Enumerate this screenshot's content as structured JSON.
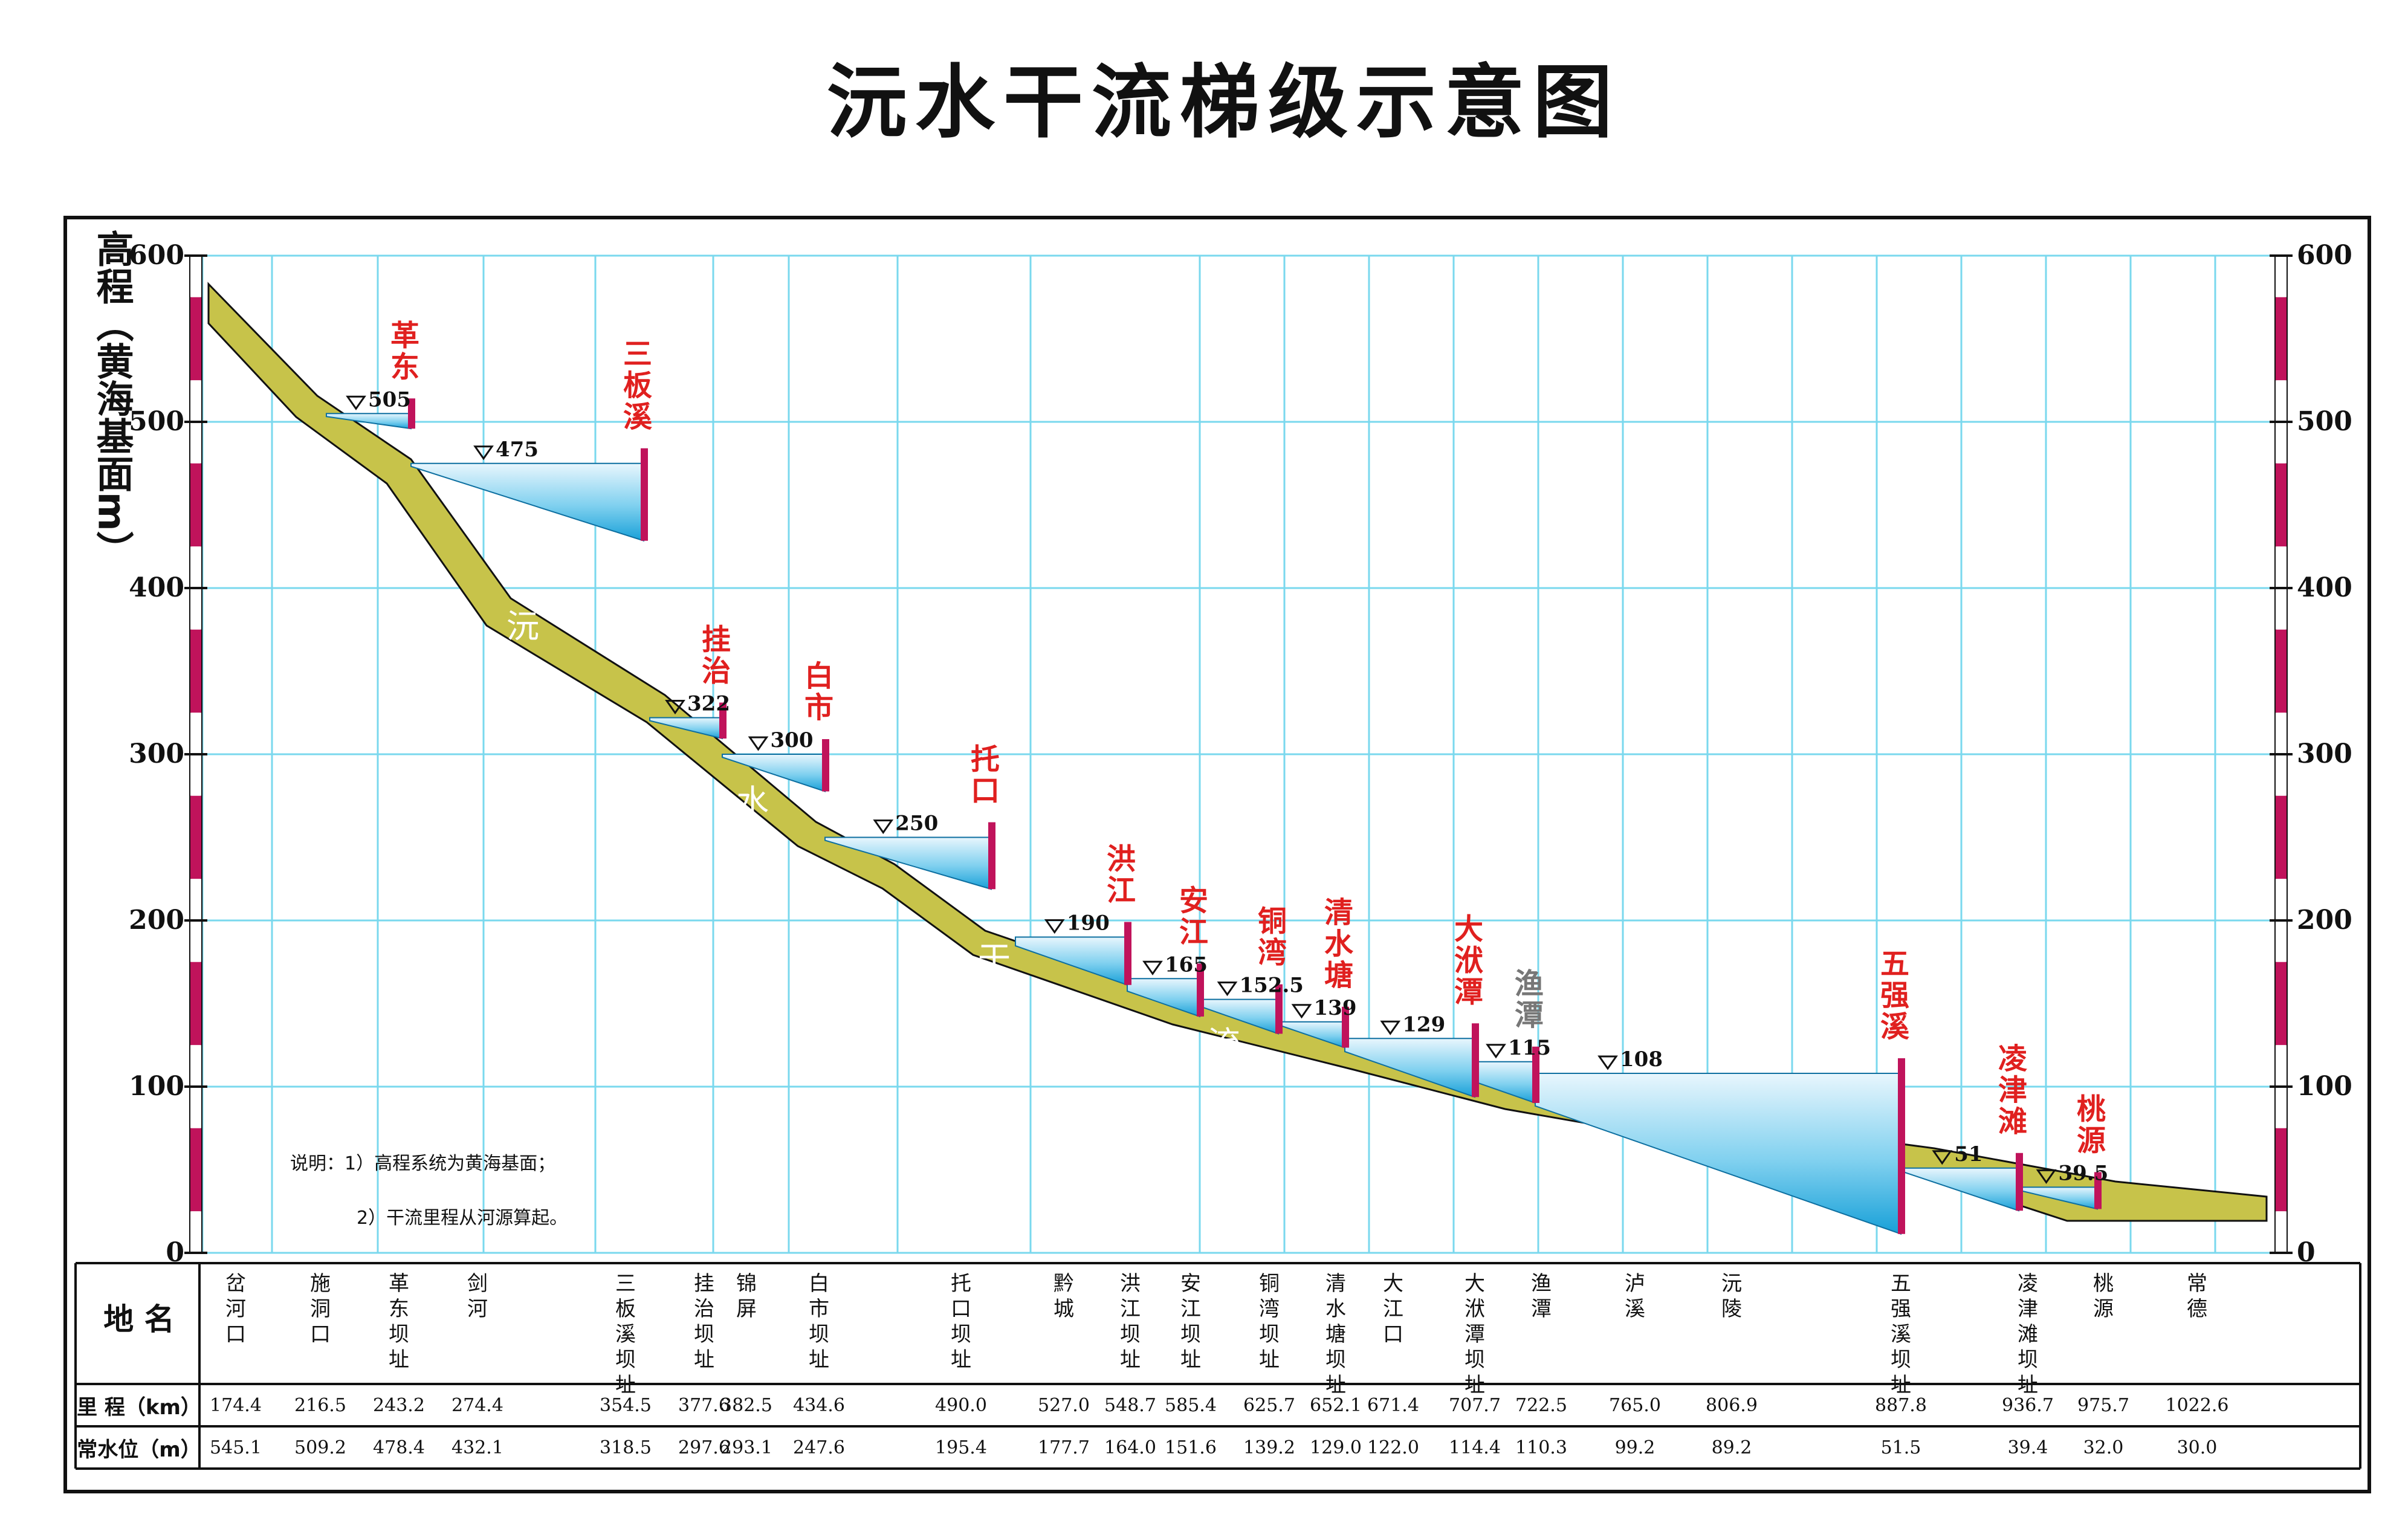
{
  "title": "沅水干流梯级示意图",
  "axis": {
    "ylabel": "高程（黄海基面m）",
    "ticks": [
      "600",
      "500",
      "400",
      "300",
      "200",
      "100",
      "0"
    ]
  },
  "notes": [
    "说明：1）高程系统为黄海基面；",
    "2）干流里程从河源算起。"
  ],
  "colors": {
    "dam_label": "#e0201f",
    "dam": "#c0135b",
    "riverbed": "#c7c34a",
    "grid": "#7ad8ee"
  },
  "river_letters": [
    "沅",
    "水",
    "干",
    "流"
  ],
  "chart_data": {
    "type": "profile",
    "title": "沅水干流梯级示意图",
    "ylabel": "高程（黄海基面m）",
    "ylim": [
      0,
      600
    ],
    "reservoirs": [
      {
        "name": "革东",
        "level": "505",
        "level_m": 505
      },
      {
        "name": "三板溪",
        "level": "475",
        "level_m": 475
      },
      {
        "name": "挂治",
        "level": "322",
        "level_m": 322
      },
      {
        "name": "白市",
        "level": "300",
        "level_m": 300
      },
      {
        "name": "托口",
        "level": "250",
        "level_m": 250
      },
      {
        "name": "洪江",
        "level": "190",
        "level_m": 190
      },
      {
        "name": "安江",
        "level": "165",
        "level_m": 165
      },
      {
        "name": "铜湾",
        "level": "152.5",
        "level_m": 152.5
      },
      {
        "name": "清水塘",
        "level": "139",
        "level_m": 139
      },
      {
        "name": "大洑潭",
        "level": "129",
        "level_m": 129
      },
      {
        "name": "渔潭",
        "level": "115",
        "level_m": 115
      },
      {
        "name": "五强溪",
        "level": "108",
        "level_m": 108
      },
      {
        "name": "凌津滩",
        "level": "51",
        "level_m": 51
      },
      {
        "name": "桃源",
        "level": "39.5",
        "level_m": 39.5
      }
    ]
  },
  "table": {
    "row_headers": [
      "地 名",
      "里 程（km）",
      "常水位（m）"
    ],
    "stations": [
      {
        "name": "岔河口",
        "km": "174.4",
        "level": "545.1"
      },
      {
        "name": "施洞口",
        "km": "216.5",
        "level": "509.2"
      },
      {
        "name": "革东坝址",
        "km": "243.2",
        "level": "478.4"
      },
      {
        "name": "剑河",
        "km": "274.4",
        "level": "432.1"
      },
      {
        "name": "三板溪坝址",
        "km": "354.5",
        "level": "318.5"
      },
      {
        "name": "挂治坝址",
        "km": "377.6",
        "level": "297.6"
      },
      {
        "name": "锦屏",
        "km": "382.5",
        "level": "293.1"
      },
      {
        "name": "白市坝址",
        "km": "434.6",
        "level": "247.6"
      },
      {
        "name": "托口坝址",
        "km": "490.0",
        "level": "195.4"
      },
      {
        "name": "黔城",
        "km": "527.0",
        "level": "177.7"
      },
      {
        "name": "洪江坝址",
        "km": "548.7",
        "level": "164.0"
      },
      {
        "name": "安江坝址",
        "km": "585.4",
        "level": "151.6"
      },
      {
        "name": "铜湾坝址",
        "km": "625.7",
        "level": "139.2"
      },
      {
        "name": "清水塘坝址",
        "km": "652.1",
        "level": "129.0"
      },
      {
        "name": "大江口",
        "km": "671.4",
        "level": "122.0"
      },
      {
        "name": "大洑潭坝址",
        "km": "707.7",
        "level": "114.4"
      },
      {
        "name": "渔潭",
        "km": "722.5",
        "level": "110.3"
      },
      {
        "name": "泸溪",
        "km": "765.0",
        "level": "99.2"
      },
      {
        "name": "沅陵",
        "km": "806.9",
        "level": "89.2"
      },
      {
        "name": "五强溪坝址",
        "km": "887.8",
        "level": "51.5"
      },
      {
        "name": "凌津滩坝址",
        "km": "936.7",
        "level": "39.4"
      },
      {
        "name": "桃源",
        "km": "975.7",
        "level": "32.0"
      },
      {
        "name": "常德",
        "km": "1022.6",
        "level": "30.0"
      }
    ]
  }
}
